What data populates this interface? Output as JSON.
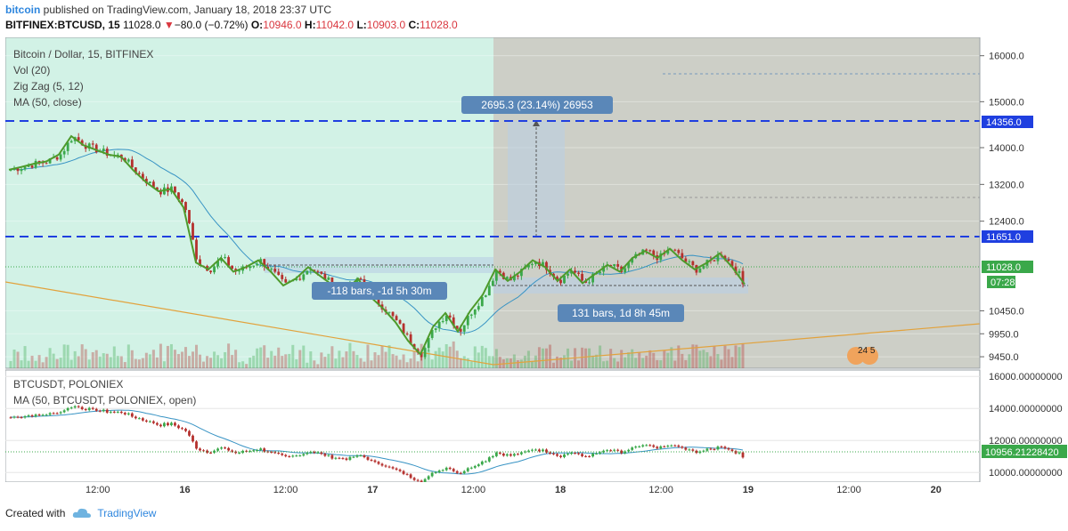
{
  "header": {
    "user": "bitcoin",
    "published": "published on TradingView.com, January 18, 2018 23:37 UTC",
    "symbol": "BITFINEX:BTCUSD, 15",
    "last": "11028.0",
    "change": "−80.0 (−0.72%)",
    "o_label": "O:",
    "o_value": "10946.0",
    "h_label": "H:",
    "h_value": "11042.0",
    "l_label": "L:",
    "l_value": "10903.0",
    "c_label": "C:",
    "c_value": "11028.0"
  },
  "main_legend": {
    "title": "Bitcoin / Dollar, 15, BITFINEX",
    "vol": "Vol (20)",
    "zigzag": "Zig Zag (5, 12)",
    "ma": "MA (50, close)"
  },
  "sub_legend": {
    "title": "BTCUSDT, POLONIEX",
    "ma": "MA (50, BTCUSDT, POLONIEX, open)"
  },
  "annotations": {
    "measure_up": "2695.3 (23.14%) 26953",
    "range_left": "-118 bars, -1d 5h 30m",
    "range_right": "131 bars, 1d 8h 45m",
    "countdown": "07:28",
    "events": "24 5"
  },
  "price_axis": {
    "ticks": [
      "16000.0",
      "15000.0",
      "14000.0",
      "13200.0",
      "12400.0",
      "10450.0",
      "9950.0",
      "9450.0"
    ],
    "level_high": "14356.0",
    "level_mid": "11651.0",
    "last_price": "11028.0"
  },
  "sub_axis": {
    "ticks": [
      "16000.00000000",
      "14000.00000000",
      "12000.00000000",
      "10000.00000000"
    ],
    "last_price": "10956.21228420"
  },
  "time_axis": {
    "ticks": [
      "12:00",
      "16",
      "12:00",
      "17",
      "12:00",
      "18",
      "12:00",
      "19",
      "12:00",
      "20"
    ]
  },
  "footer": {
    "created": "Created with",
    "brand": "TradingView"
  },
  "colors": {
    "up_candle": "#3aa84a",
    "down_candle": "#b5312e",
    "green_zone": "#d2f2e6",
    "gray_zone": "#cdcfc7",
    "zigzag": "#4e9a2b",
    "ma": "#3793c4",
    "dash_level": "#1f3fe0",
    "trend": "#e2a23c"
  },
  "chart_data": [
    {
      "type": "candlestick",
      "title": "Bitcoin / Dollar, 15, BITFINEX",
      "x_ticks": [
        "12:00",
        "16",
        "12:00",
        "17",
        "12:00",
        "18",
        "12:00",
        "19",
        "12:00",
        "20"
      ],
      "ylim": [
        9200,
        16400
      ],
      "close_path": [
        13520,
        13580,
        13650,
        13700,
        13850,
        14250,
        14050,
        13950,
        13850,
        13800,
        13500,
        13250,
        13050,
        13100,
        12700,
        11500,
        11350,
        11600,
        11300,
        11400,
        11550,
        11300,
        11000,
        11150,
        11400,
        11200,
        11000,
        10900,
        11150,
        10750,
        10500,
        10200,
        9800,
        9500,
        10100,
        10400,
        10000,
        10450,
        10800,
        11350,
        11100,
        11300,
        11550,
        11400,
        11100,
        11350,
        11050,
        11250,
        11450,
        11300,
        11600,
        11750,
        11600,
        11800,
        11550,
        11350,
        11500,
        11700,
        11400,
        11028
      ],
      "horizontal_levels": [
        14356.0,
        11651.0
      ],
      "last_price": 11028.0,
      "grid": true
    },
    {
      "type": "line",
      "title": "BTCUSDT, POLONIEX",
      "ylim": [
        9400,
        16400
      ],
      "last_price": 10956.2122842,
      "grid": true
    }
  ]
}
